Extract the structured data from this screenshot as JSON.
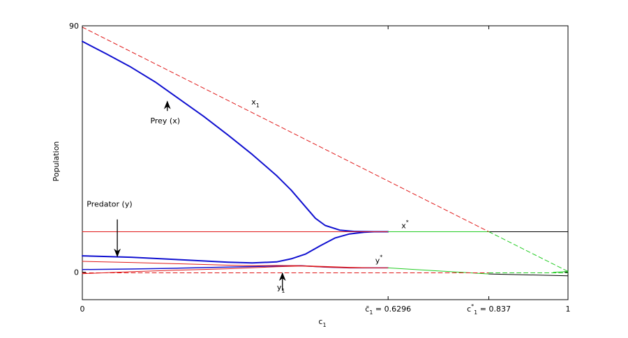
{
  "chart_data": {
    "type": "line",
    "xlabel": "c",
    "xlabel_sub": "1",
    "ylabel": "Population",
    "xlim": [
      0,
      1
    ],
    "ylim": [
      -10,
      90
    ],
    "y_ticks": [
      {
        "value": 0,
        "label": "0"
      },
      {
        "value": 90,
        "label": "90"
      }
    ],
    "x_ticks": [
      {
        "value": 0,
        "label": "0",
        "sub": "",
        "suffix": ""
      },
      {
        "value": 0.6296,
        "label": "c̄",
        "sub": "1",
        "suffix": " = 0.6296"
      },
      {
        "value": 0.837,
        "label": "c",
        "sup": "*",
        "sub": "1",
        "suffix": " = 0.837"
      },
      {
        "value": 1,
        "label": "1",
        "sub": "",
        "suffix": ""
      }
    ],
    "grid": false,
    "colors": {
      "blue": "#1010d0",
      "red": "#e01818",
      "green": "#22cc22",
      "black": "#000000"
    },
    "series": [
      {
        "id": "prey",
        "style": "solid",
        "color": "blue",
        "width": 2,
        "x": [
          0,
          0.05,
          0.1,
          0.15,
          0.2,
          0.25,
          0.3,
          0.35,
          0.4,
          0.43,
          0.46,
          0.48,
          0.5,
          0.53,
          0.56,
          0.6,
          0.6296
        ],
        "y": [
          84.3,
          79.7,
          74.9,
          69.5,
          63.2,
          56.9,
          50.1,
          43.0,
          35.3,
          30.0,
          23.8,
          19.7,
          17.1,
          15.4,
          14.9,
          14.8,
          14.8
        ]
      },
      {
        "id": "predator-upper",
        "style": "solid",
        "color": "blue",
        "width": 2,
        "x": [
          0,
          0.1,
          0.2,
          0.3,
          0.35,
          0.4,
          0.43,
          0.46,
          0.49,
          0.52,
          0.55,
          0.58,
          0.6,
          0.6296
        ],
        "y": [
          6.0,
          5.5,
          4.6,
          3.7,
          3.4,
          3.8,
          4.9,
          6.7,
          9.7,
          12.5,
          14.0,
          14.6,
          14.8,
          14.8
        ]
      },
      {
        "id": "blue-lower",
        "style": "solid",
        "color": "blue",
        "width": 1.5,
        "x": [
          0,
          0.1,
          0.2,
          0.3,
          0.4,
          0.45,
          0.5,
          0.55,
          0.6,
          0.6296
        ],
        "y": [
          1.0,
          1.2,
          1.5,
          1.9,
          2.3,
          2.4,
          1.9,
          1.6,
          1.6,
          1.6
        ]
      },
      {
        "id": "red-lower",
        "style": "solid",
        "color": "red",
        "width": 1,
        "x": [
          0,
          0.1,
          0.2,
          0.3,
          0.4,
          0.45,
          0.5,
          0.55,
          0.6,
          0.6296
        ],
        "y": [
          -0.5,
          0.2,
          0.8,
          1.3,
          2.0,
          2.3,
          1.9,
          1.6,
          1.6,
          1.6
        ]
      },
      {
        "id": "red-upper",
        "style": "solid",
        "color": "red",
        "width": 1,
        "x": [
          0,
          0.1,
          0.2,
          0.3,
          0.35,
          0.4,
          0.45,
          0.5,
          0.55,
          0.6,
          0.6296
        ],
        "y": [
          4.0,
          3.6,
          3.1,
          2.6,
          2.4,
          2.5,
          2.4,
          2.1,
          1.8,
          1.6,
          1.6
        ]
      },
      {
        "id": "x-star-red",
        "style": "solid",
        "color": "red",
        "width": 1,
        "x": [
          0,
          0.6296
        ],
        "y": [
          14.8,
          14.8
        ]
      },
      {
        "id": "x-star-green",
        "style": "solid",
        "color": "green",
        "width": 1,
        "x": [
          0.6296,
          0.837
        ],
        "y": [
          14.8,
          14.8
        ]
      },
      {
        "id": "x-star-black",
        "style": "solid",
        "color": "black",
        "width": 1,
        "x": [
          0.837,
          1
        ],
        "y": [
          14.8,
          14.8
        ]
      },
      {
        "id": "y-star-green",
        "style": "solid",
        "color": "green",
        "width": 1,
        "x": [
          0.6296,
          0.837
        ],
        "y": [
          1.6,
          -0.6
        ]
      },
      {
        "id": "y-star-black",
        "style": "solid",
        "color": "black",
        "width": 1,
        "x": [
          0.837,
          1
        ],
        "y": [
          -0.6,
          -1.3
        ]
      },
      {
        "id": "x1-red",
        "style": "dashed",
        "color": "red",
        "width": 1,
        "x": [
          0,
          0.837
        ],
        "y": [
          89.5,
          14.8
        ]
      },
      {
        "id": "x1-green",
        "style": "dashed",
        "color": "green",
        "width": 1,
        "x": [
          0.837,
          1
        ],
        "y": [
          14.8,
          0.3
        ]
      },
      {
        "id": "y1-red",
        "style": "dashed",
        "color": "red",
        "width": 1,
        "x": [
          0,
          0.837
        ],
        "y": [
          -0.2,
          -0.2
        ]
      },
      {
        "id": "y1-green",
        "style": "dashed",
        "color": "green",
        "width": 1,
        "x": [
          0.837,
          1
        ],
        "y": [
          -0.2,
          -0.2
        ]
      },
      {
        "id": "zero-tail",
        "style": "solid",
        "color": "green",
        "width": 1,
        "x": [
          0.97,
          1
        ],
        "y": [
          0.0,
          0.3
        ]
      }
    ],
    "annotations": [
      {
        "id": "label-x1",
        "text": "x",
        "sub": "1",
        "x": 0.348,
        "y": 61.3,
        "anchor": "start"
      },
      {
        "id": "label-prey",
        "text": "Prey (x)",
        "x": 0.14,
        "y": 54.4,
        "anchor": "start"
      },
      {
        "id": "label-predator",
        "text": "Predator (y)",
        "x": 0.009,
        "y": 24.0,
        "anchor": "start"
      },
      {
        "id": "label-xstar",
        "text": "x",
        "sup": "*",
        "x": 0.657,
        "y": 16.1,
        "anchor": "start"
      },
      {
        "id": "label-ystar",
        "text": "y",
        "sup": "*",
        "x": 0.603,
        "y": 3.3,
        "anchor": "start"
      },
      {
        "id": "label-y1",
        "text": "y",
        "sub": "1",
        "x": 0.409,
        "y": -6.5,
        "anchor": "middle"
      }
    ],
    "arrows": [
      {
        "id": "arrow-prey",
        "from": [
          0.175,
          58.9
        ],
        "to": [
          0.175,
          62.4
        ]
      },
      {
        "id": "arrow-predator",
        "from": [
          0.072,
          19.3
        ],
        "to": [
          0.072,
          5.8
        ]
      },
      {
        "id": "arrow-y1",
        "from": [
          0.412,
          -6.7
        ],
        "to": [
          0.412,
          -0.3
        ]
      }
    ]
  }
}
